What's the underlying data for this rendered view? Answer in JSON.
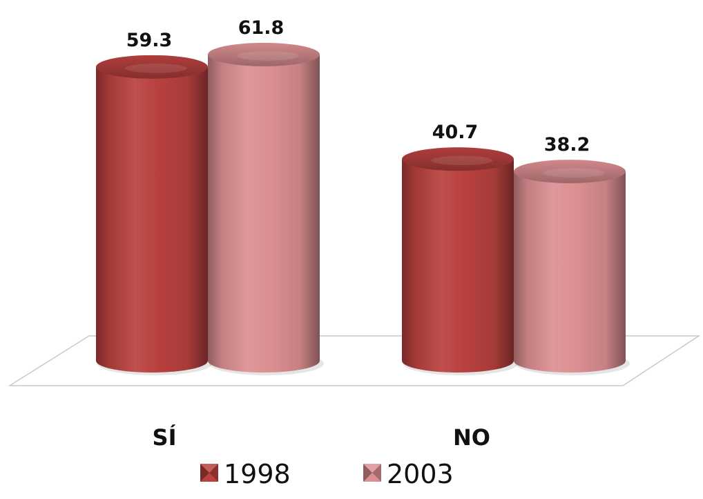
{
  "chart_data": {
    "type": "bar",
    "style": "3d-cylinder",
    "categories": [
      "SÍ",
      "NO"
    ],
    "series": [
      {
        "name": "1998",
        "values": [
          59.3,
          40.7
        ],
        "labels": [
          "59.3",
          "40.7"
        ],
        "color": "#b8413f"
      },
      {
        "name": "2003",
        "values": [
          61.8,
          38.2
        ],
        "labels": [
          "61.8",
          "38.2"
        ],
        "color": "#dc8f92"
      }
    ],
    "title": "",
    "xlabel": "",
    "ylabel": "",
    "grid": false,
    "legend": "bottom"
  }
}
